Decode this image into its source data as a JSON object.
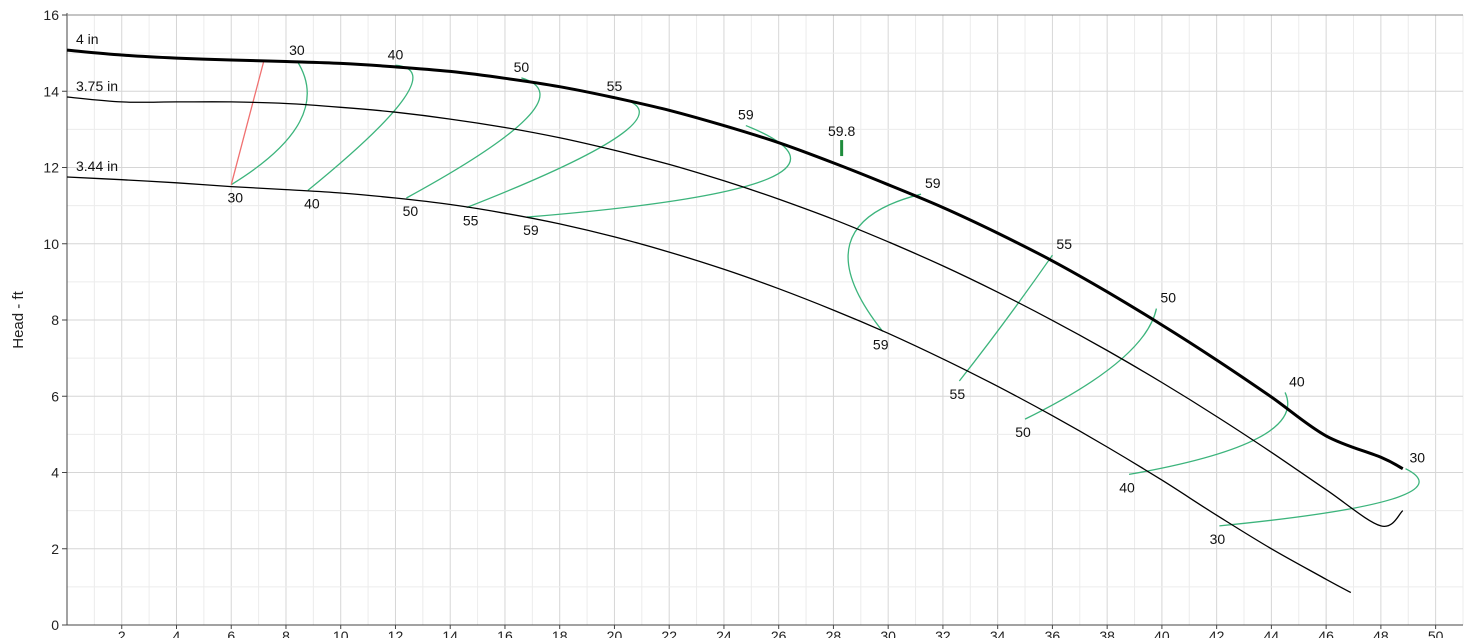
{
  "chart_data": {
    "type": "line",
    "title": "",
    "xlabel": "",
    "ylabel": "Head - ft",
    "xlim": [
      0,
      51
    ],
    "ylim": [
      0,
      16
    ],
    "x_ticks": [
      2,
      4,
      6,
      8,
      10,
      12,
      14,
      16,
      18,
      20,
      22,
      24,
      26,
      28,
      30,
      32,
      34,
      36,
      38,
      40,
      42,
      44,
      46,
      48,
      50
    ],
    "y_ticks": [
      0,
      2,
      4,
      6,
      8,
      10,
      12,
      14,
      16
    ],
    "grid": true,
    "colors": {
      "impeller_curves": "#000000",
      "efficiency_contours": "#3cb47c",
      "min_flow_line": "#f07070",
      "bep_marker": "#1e8c3c",
      "grid": "#dddddd"
    },
    "series": [
      {
        "name": "4 in",
        "line_width": "thick",
        "points": [
          [
            0,
            15.08
          ],
          [
            2,
            14.95
          ],
          [
            4,
            14.87
          ],
          [
            6,
            14.82
          ],
          [
            8,
            14.78
          ],
          [
            10,
            14.73
          ],
          [
            12,
            14.64
          ],
          [
            14,
            14.52
          ],
          [
            16,
            14.34
          ],
          [
            18,
            14.12
          ],
          [
            20,
            13.83
          ],
          [
            22,
            13.5
          ],
          [
            24,
            13.1
          ],
          [
            26,
            12.65
          ],
          [
            28,
            12.12
          ],
          [
            30,
            11.55
          ],
          [
            32,
            10.95
          ],
          [
            34,
            10.28
          ],
          [
            36,
            9.55
          ],
          [
            38,
            8.74
          ],
          [
            40,
            7.87
          ],
          [
            42,
            6.95
          ],
          [
            44,
            5.98
          ],
          [
            46,
            4.96
          ],
          [
            48,
            4.4
          ],
          [
            48.8,
            4.1
          ]
        ]
      },
      {
        "name": "3.75 in",
        "line_width": "normal",
        "points": [
          [
            0,
            13.85
          ],
          [
            2,
            13.72
          ],
          [
            4,
            13.72
          ],
          [
            6,
            13.72
          ],
          [
            8,
            13.68
          ],
          [
            10,
            13.58
          ],
          [
            12,
            13.45
          ],
          [
            14,
            13.27
          ],
          [
            16,
            13.05
          ],
          [
            18,
            12.78
          ],
          [
            20,
            12.45
          ],
          [
            22,
            12.08
          ],
          [
            24,
            11.65
          ],
          [
            26,
            11.17
          ],
          [
            28,
            10.64
          ],
          [
            30,
            10.05
          ],
          [
            32,
            9.42
          ],
          [
            34,
            8.73
          ],
          [
            36,
            7.99
          ],
          [
            38,
            7.2
          ],
          [
            40,
            6.36
          ],
          [
            42,
            5.47
          ],
          [
            44,
            4.53
          ],
          [
            46,
            3.55
          ],
          [
            48,
            2.6
          ],
          [
            48.8,
            3.0
          ]
        ]
      },
      {
        "name": "3.44 in",
        "line_width": "normal",
        "points": [
          [
            0,
            11.75
          ],
          [
            2,
            11.68
          ],
          [
            4,
            11.6
          ],
          [
            6,
            11.5
          ],
          [
            8,
            11.42
          ],
          [
            10,
            11.33
          ],
          [
            12,
            11.2
          ],
          [
            14,
            11.03
          ],
          [
            16,
            10.8
          ],
          [
            18,
            10.52
          ],
          [
            20,
            10.18
          ],
          [
            22,
            9.78
          ],
          [
            24,
            9.33
          ],
          [
            26,
            8.82
          ],
          [
            28,
            8.26
          ],
          [
            30,
            7.65
          ],
          [
            32,
            6.98
          ],
          [
            34,
            6.26
          ],
          [
            36,
            5.49
          ],
          [
            38,
            4.67
          ],
          [
            40,
            3.8
          ],
          [
            42,
            2.88
          ],
          [
            44,
            2.0
          ],
          [
            46,
            1.2
          ],
          [
            46.9,
            0.85
          ]
        ]
      }
    ],
    "efficiency_contours": [
      {
        "label_upper": "30",
        "label_lower": "30",
        "upper": [
          8.4,
          14.8
        ],
        "lower": [
          6.0,
          11.55
        ],
        "bulge": [
          8.5,
          13.2
        ]
      },
      {
        "label_upper": "40",
        "label_lower": "40",
        "upper": [
          12.0,
          14.68
        ],
        "lower": [
          8.8,
          11.4
        ],
        "bulge": [
          12.3,
          13.8
        ]
      },
      {
        "label_upper": "50",
        "label_lower": "50",
        "upper": [
          16.6,
          14.35
        ],
        "lower": [
          12.4,
          11.2
        ],
        "bulge": [
          16.8,
          13.3
        ]
      },
      {
        "label_upper": "55",
        "label_lower": "55",
        "upper": [
          20.0,
          13.85
        ],
        "lower": [
          14.6,
          10.95
        ],
        "bulge": [
          20.3,
          12.9
        ]
      },
      {
        "label_upper": "59",
        "label_lower": "59",
        "upper": [
          24.8,
          13.1
        ],
        "lower": [
          16.8,
          10.7
        ],
        "bulge": [
          25.6,
          11.7
        ]
      },
      {
        "label_upper": "59",
        "label_lower": "59",
        "upper": [
          31.2,
          11.3
        ],
        "lower": [
          29.8,
          7.7
        ],
        "bulge": [
          28.6,
          10.0
        ]
      },
      {
        "label_upper": "55",
        "label_lower": "55",
        "upper": [
          36.0,
          9.7
        ],
        "lower": [
          32.6,
          6.4
        ],
        "bulge": [
          34.3,
          8.0
        ]
      },
      {
        "label_upper": "50",
        "label_lower": "50",
        "upper": [
          39.8,
          8.3
        ],
        "lower": [
          35.0,
          5.4
        ],
        "bulge": [
          38.4,
          6.9
        ]
      },
      {
        "label_upper": "40",
        "label_lower": "40",
        "upper": [
          44.5,
          6.1
        ],
        "lower": [
          38.8,
          3.95
        ],
        "bulge": [
          43.5,
          4.9
        ]
      },
      {
        "label_upper": "30",
        "label_lower": "30",
        "upper": [
          48.9,
          4.1
        ],
        "lower": [
          42.1,
          2.6
        ],
        "bulge": [
          48.4,
          3.3
        ]
      }
    ],
    "bep": {
      "label": "59.8",
      "x": 28.3,
      "y": 12.3
    },
    "min_flow_line": [
      [
        6.0,
        11.55
      ],
      [
        7.2,
        14.82
      ]
    ]
  }
}
